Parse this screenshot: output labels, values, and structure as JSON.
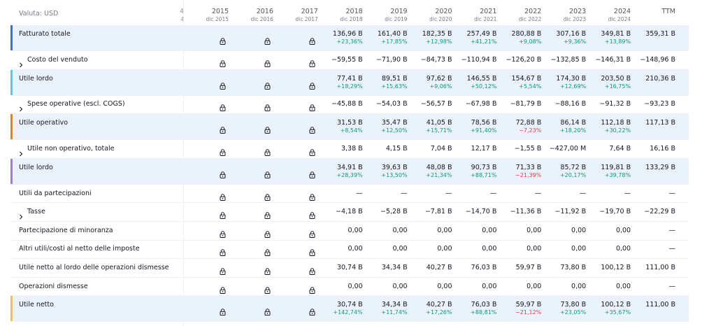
{
  "currency_label": "Valuta: USD",
  "clipped_column": {
    "year": "4",
    "period": "4"
  },
  "columns": [
    {
      "year": "2015",
      "period": "dic 2015",
      "locked": true
    },
    {
      "year": "2016",
      "period": "dic 2016",
      "locked": true
    },
    {
      "year": "2017",
      "period": "dic 2017",
      "locked": true
    },
    {
      "year": "2018",
      "period": "dic 2018",
      "locked": false
    },
    {
      "year": "2019",
      "period": "dic 2019",
      "locked": false
    },
    {
      "year": "2020",
      "period": "dic 2020",
      "locked": false
    },
    {
      "year": "2021",
      "period": "dic 2021",
      "locked": false
    },
    {
      "year": "2022",
      "period": "dic 2022",
      "locked": false
    },
    {
      "year": "2023",
      "period": "dic 2023",
      "locked": false
    },
    {
      "year": "2024",
      "period": "dic 2024",
      "locked": false
    }
  ],
  "ttm_label": "TTM",
  "rows": [
    {
      "label": "Fatturato totale",
      "expandable": false,
      "highlight": "#3d6fd6",
      "values": [
        "136,96 B",
        "161,40 B",
        "182,35 B",
        "257,49 B",
        "280,88 B",
        "307,16 B",
        "349,81 B"
      ],
      "changes": [
        "+23,36%",
        "+17,85%",
        "+12,98%",
        "+41,21%",
        "+9,08%",
        "+9,36%",
        "+13,89%"
      ],
      "ttm": "359,31 B"
    },
    {
      "label": "Costo del venduto",
      "expandable": true,
      "values": [
        "−59,55 B",
        "−71,90 B",
        "−84,73 B",
        "−110,94 B",
        "−126,20 B",
        "−132,85 B",
        "−146,31 B"
      ],
      "ttm": "−148,96 B"
    },
    {
      "label": "Utile lordo",
      "expandable": false,
      "highlight": "#4dd0e1",
      "values": [
        "77,41 B",
        "89,51 B",
        "97,62 B",
        "146,55 B",
        "154,67 B",
        "174,30 B",
        "203,50 B"
      ],
      "changes": [
        "+18,29%",
        "+15,63%",
        "+9,06%",
        "+50,12%",
        "+5,54%",
        "+12,69%",
        "+16,75%"
      ],
      "ttm": "210,36 B"
    },
    {
      "label": "Spese operative (escl. COGS)",
      "expandable": true,
      "values": [
        "−45,88 B",
        "−54,03 B",
        "−56,57 B",
        "−67,98 B",
        "−81,79 B",
        "−88,16 B",
        "−91,32 B"
      ],
      "ttm": "−93,23 B"
    },
    {
      "label": "Utile operativo",
      "expandable": false,
      "highlight": "#f57c00",
      "values": [
        "31,53 B",
        "35,47 B",
        "41,05 B",
        "78,56 B",
        "72,88 B",
        "86,14 B",
        "112,18 B"
      ],
      "changes": [
        "+8,54%",
        "+12,50%",
        "+15,71%",
        "+91,40%",
        "−7,23%",
        "+18,20%",
        "+30,22%"
      ],
      "ttm": "117,13 B"
    },
    {
      "label": "Utile non operativo, totale",
      "expandable": true,
      "values": [
        "3,38 B",
        "4,15 B",
        "7,04 B",
        "12,17 B",
        "−1,55 B",
        "−427,00 M",
        "7,64 B"
      ],
      "ttm": "16,16 B"
    },
    {
      "label": "Utile lordo",
      "expandable": false,
      "highlight": "#9c7fd6",
      "values": [
        "34,91 B",
        "39,63 B",
        "48,08 B",
        "90,73 B",
        "71,33 B",
        "85,72 B",
        "119,81 B"
      ],
      "changes": [
        "+28,39%",
        "+13,50%",
        "+21,34%",
        "+88,71%",
        "−21,39%",
        "+20,17%",
        "+39,78%"
      ],
      "ttm": "133,29 B"
    },
    {
      "label": "Utili da partecipazioni",
      "expandable": false,
      "values": [
        "—",
        "—",
        "—",
        "—",
        "—",
        "—",
        "—"
      ],
      "ttm": "—"
    },
    {
      "label": "Tasse",
      "expandable": true,
      "values": [
        "−4,18 B",
        "−5,28 B",
        "−7,81 B",
        "−14,70 B",
        "−11,36 B",
        "−11,92 B",
        "−19,70 B"
      ],
      "ttm": "−22,29 B"
    },
    {
      "label": "Partecipazione di minoranza",
      "expandable": false,
      "values": [
        "0,00",
        "0,00",
        "0,00",
        "0,00",
        "0,00",
        "0,00",
        "0,00"
      ],
      "ttm": "—"
    },
    {
      "label": "Altri utili/costi al netto delle imposte",
      "expandable": false,
      "values": [
        "0,00",
        "0,00",
        "0,00",
        "0,00",
        "0,00",
        "0,00",
        "0,00"
      ],
      "ttm": "—"
    },
    {
      "label": "Utile netto al lordo delle operazioni dismesse",
      "expandable": false,
      "values": [
        "30,74 B",
        "34,34 B",
        "40,27 B",
        "76,03 B",
        "59,97 B",
        "73,80 B",
        "100,12 B"
      ],
      "ttm": "111,00 B"
    },
    {
      "label": "Operazioni dismesse",
      "expandable": false,
      "values": [
        "0,00",
        "0,00",
        "0,00",
        "0,00",
        "0,00",
        "0,00",
        "0,00"
      ],
      "ttm": "—"
    },
    {
      "label": "Utile netto",
      "expandable": false,
      "highlight": "#f5c242",
      "values": [
        "30,74 B",
        "34,34 B",
        "40,27 B",
        "76,03 B",
        "59,97 B",
        "73,80 B",
        "100,12 B"
      ],
      "changes": [
        "+142,74%",
        "+11,74%",
        "+17,26%",
        "+88,81%",
        "−21,12%",
        "+23,05%",
        "+35,67%"
      ],
      "ttm": "111,00 B"
    }
  ]
}
